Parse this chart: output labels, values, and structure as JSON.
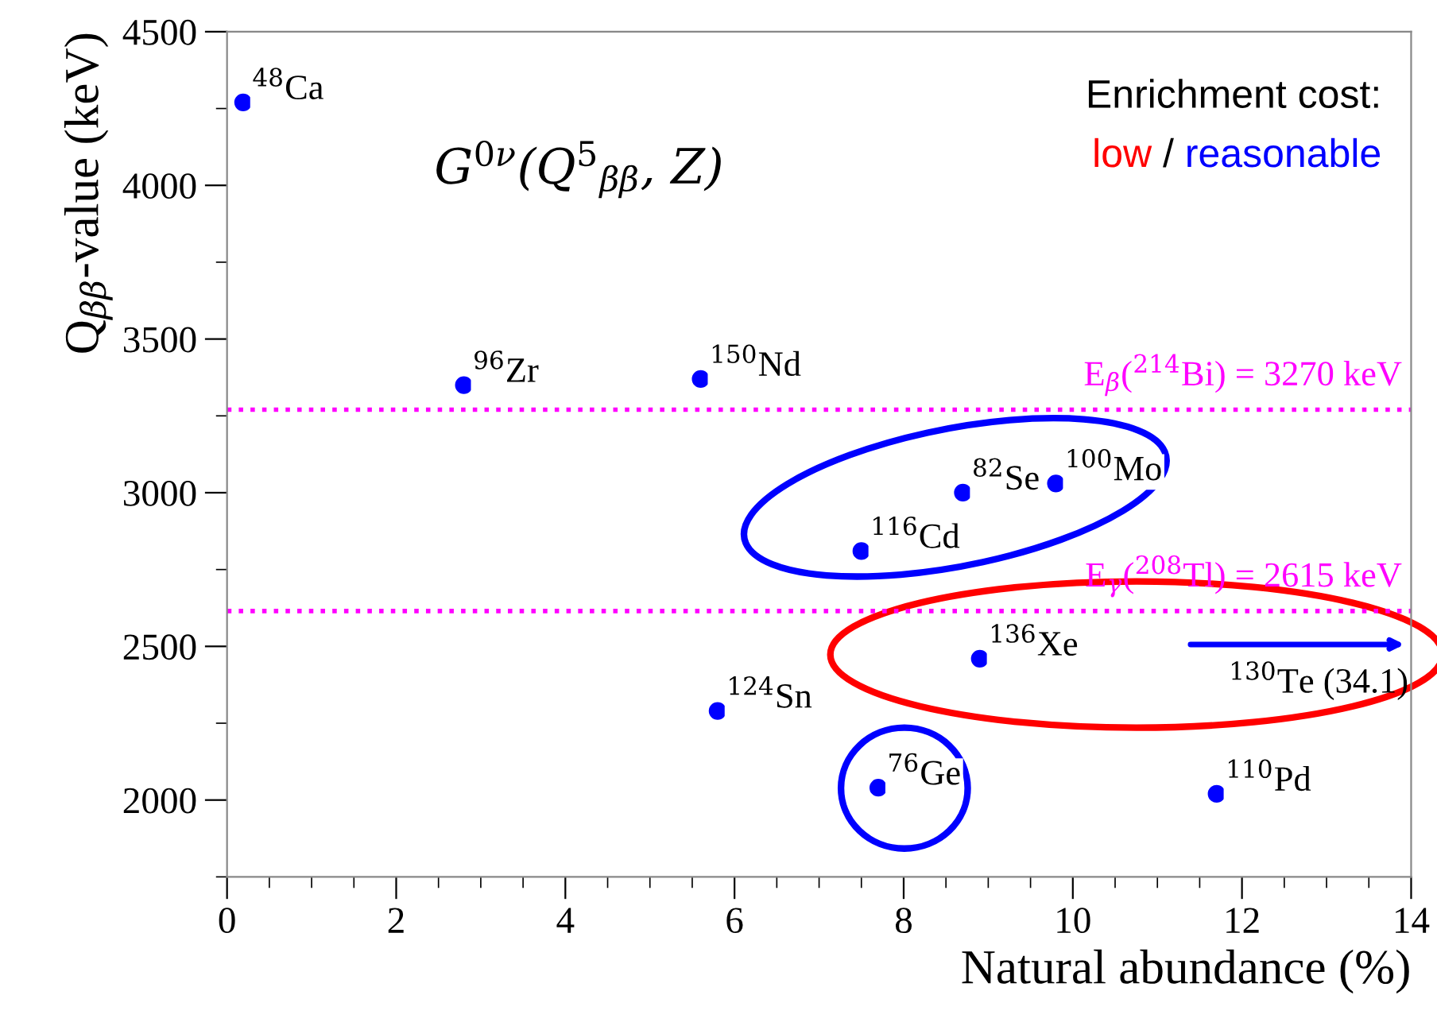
{
  "chart_data": {
    "type": "scatter",
    "xlabel": "Natural abundance (%)",
    "ylabel": "Q$_{ββ}$-value (keV)",
    "xlim": [
      0,
      14
    ],
    "xticks": [
      0,
      2,
      4,
      6,
      8,
      10,
      12,
      14
    ],
    "ylim": [
      1750,
      4500
    ],
    "yticks": [
      2000,
      2500,
      3000,
      3500,
      4000,
      4500
    ],
    "grid": false,
    "legend": false,
    "marker": "circle",
    "series": [
      {
        "color": "#0000ff",
        "x": [
          0.19,
          2.8,
          5.6,
          7.5,
          8.7,
          9.8,
          8.9,
          5.8,
          7.7,
          11.7
        ],
        "values": [
          4270,
          3350,
          3370,
          2810,
          3000,
          3030,
          2460,
          2290,
          2040,
          2020
        ]
      }
    ],
    "ref_lines": [
      {
        "axis": "y",
        "value": 3270,
        "label": "E$_{β}$($^{214}$Bi) = 3270 keV",
        "color": "#ff00ff",
        "line_style": "dotted"
      },
      {
        "axis": "y",
        "value": 2615,
        "label": "E$_{γ}$($^{208}$Tl) = 2615 keV",
        "color": "#ff00ff",
        "line_style": "dotted"
      }
    ],
    "annotations": [
      {
        "text": "$^{48}$Ca",
        "x": 0.19,
        "y": 4270
      },
      {
        "text": "$^{96}$Zr",
        "x": 2.8,
        "y": 3350
      },
      {
        "text": "$^{150}$Nd",
        "x": 5.6,
        "y": 3370
      },
      {
        "text": "$^{116}$Cd",
        "x": 7.5,
        "y": 2810
      },
      {
        "text": "$^{82}$Se",
        "x": 8.7,
        "y": 3000
      },
      {
        "text": "$^{100}$Mo",
        "x": 9.8,
        "y": 3030
      },
      {
        "text": "$^{136}$Xe",
        "x": 8.9,
        "y": 2460
      },
      {
        "text": "$^{124}$Sn",
        "x": 5.8,
        "y": 2290
      },
      {
        "text": "$^{76}$Ge",
        "x": 7.7,
        "y": 2040
      },
      {
        "text": "$^{110}$Pd",
        "x": 11.7,
        "y": 2020
      },
      "G$^{0ν}$(Q$^{5}$$_{ββ}$, Z)",
      "$^{130}$Te (34.1)",
      "Enrichment cost:",
      "low",
      "/",
      "reasonable"
    ]
  }
}
